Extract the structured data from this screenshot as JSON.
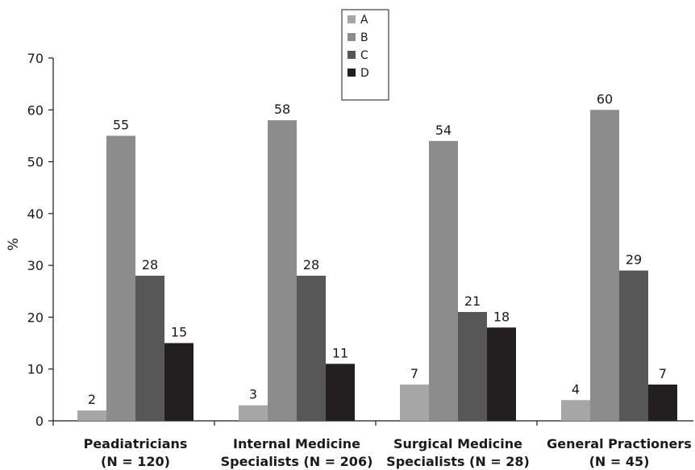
{
  "chart_data": {
    "type": "bar",
    "ylabel": "%",
    "ylim": [
      0,
      70
    ],
    "yticks": [
      0,
      10,
      20,
      30,
      40,
      50,
      60,
      70
    ],
    "grid": false,
    "legend_position": "top-center",
    "categories": [
      [
        "Peadiatricians",
        "(N = 120)"
      ],
      [
        "Internal Medicine",
        "Specialists (N = 206)"
      ],
      [
        "Surgical Medicine",
        "Specialists (N = 28)"
      ],
      [
        "General Practioners",
        "(N = 45)"
      ]
    ],
    "series": [
      {
        "name": "A",
        "color": "#a6a6a6",
        "values": [
          2,
          3,
          7,
          4
        ]
      },
      {
        "name": "B",
        "color": "#8c8c8c",
        "values": [
          55,
          58,
          54,
          60
        ]
      },
      {
        "name": "C",
        "color": "#575757",
        "values": [
          28,
          28,
          21,
          29
        ]
      },
      {
        "name": "D",
        "color": "#231f20",
        "values": [
          15,
          11,
          18,
          7
        ]
      }
    ]
  }
}
